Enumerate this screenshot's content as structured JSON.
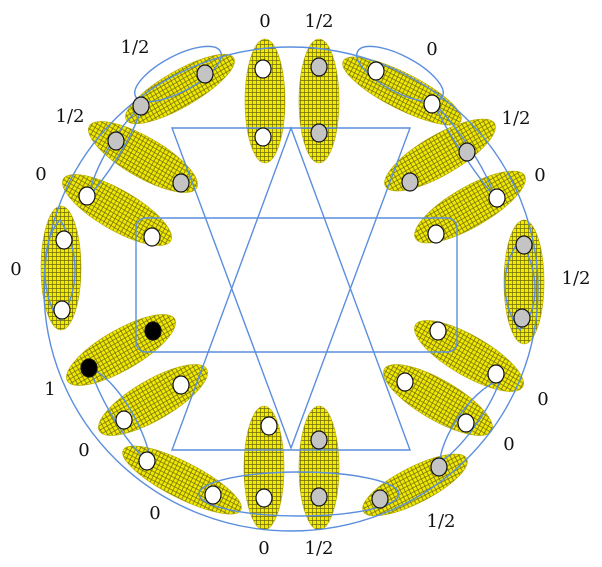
{
  "colors": {
    "pad_fill": "#f2ea00",
    "pad_grid": "#6d6a10",
    "pad_edge": "#b7ab00",
    "curve": "#5b8ede",
    "dot_white": "#ffffff",
    "dot_gray": "#c4c4c4",
    "dot_black": "#000000",
    "dot_edge": "#111111"
  },
  "pads": [
    {
      "id": "top-left",
      "label": "0",
      "dots": [
        "white",
        "white"
      ]
    },
    {
      "id": "top-right",
      "label": "1/2",
      "dots": [
        "gray",
        "gray"
      ]
    },
    {
      "id": "upper-right-a",
      "label": "0",
      "dots": [
        "white",
        "white"
      ]
    },
    {
      "id": "upper-right-b",
      "label": "1/2",
      "dots": [
        "gray",
        "gray"
      ]
    },
    {
      "id": "upper-right-c",
      "label": "0",
      "dots": [
        "white",
        "white"
      ]
    },
    {
      "id": "right",
      "label": "1/2",
      "dots": [
        "gray",
        "gray"
      ]
    },
    {
      "id": "lower-right-a",
      "label": "0",
      "dots": [
        "white",
        "white"
      ]
    },
    {
      "id": "lower-right-b",
      "label": "0",
      "dots": [
        "white",
        "white"
      ]
    },
    {
      "id": "lower-right-c",
      "label": "1/2",
      "dots": [
        "gray",
        "gray"
      ]
    },
    {
      "id": "bottom-right",
      "label": "1/2",
      "dots": [
        "gray",
        "gray"
      ]
    },
    {
      "id": "bottom-left",
      "label": "0",
      "dots": [
        "white",
        "white"
      ]
    },
    {
      "id": "lower-left-a",
      "label": "0",
      "dots": [
        "white",
        "white"
      ]
    },
    {
      "id": "lower-left-b",
      "label": "0",
      "dots": [
        "white",
        "white"
      ]
    },
    {
      "id": "lower-left-c",
      "label": "1",
      "dots": [
        "black",
        "black"
      ]
    },
    {
      "id": "left",
      "label": "0",
      "dots": [
        "white",
        "white"
      ]
    },
    {
      "id": "upper-left-a",
      "label": "0",
      "dots": [
        "white",
        "white"
      ]
    },
    {
      "id": "upper-left-b",
      "label": "1/2",
      "dots": [
        "gray",
        "gray"
      ]
    },
    {
      "id": "upper-left-c",
      "label": "1/2",
      "dots": [
        "gray",
        "gray"
      ]
    }
  ]
}
